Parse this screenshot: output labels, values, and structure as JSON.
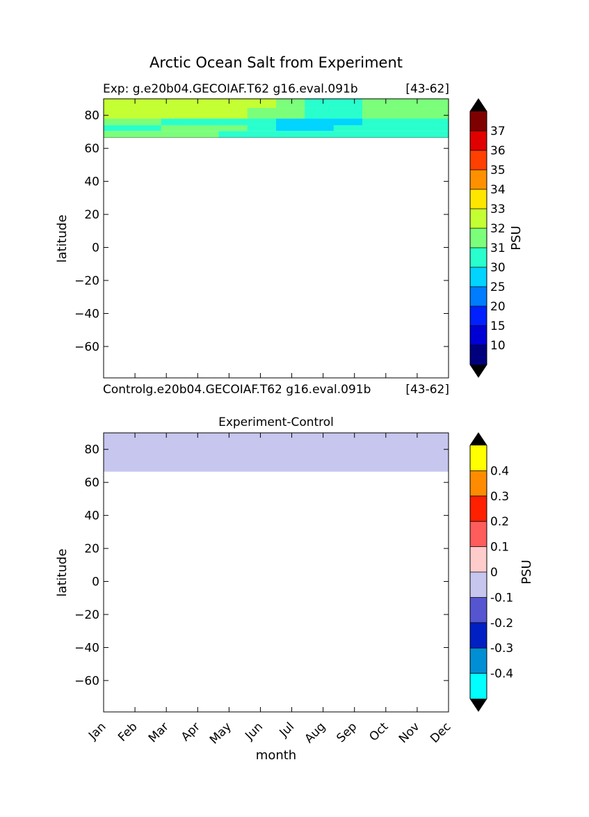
{
  "figure": {
    "suptitle": "Arctic Ocean Salt from Experiment"
  },
  "chart_data": [
    {
      "type": "heatmap",
      "title_left": "Exp:    g.e20b04.GECOIAF.T62 g16.eval.091b",
      "title_right": "[43-62]",
      "xlabel": "",
      "ylabel": "latitude",
      "ylim": [
        -79,
        90
      ],
      "yticks": [
        -60,
        -40,
        -20,
        0,
        20,
        40,
        60,
        80
      ],
      "xcategories": [
        "Jan",
        "Feb",
        "Mar",
        "Apr",
        "May",
        "Jun",
        "Jul",
        "Aug",
        "Sep",
        "Oct",
        "Nov",
        "Dec"
      ],
      "data_lat_range": [
        66.5,
        90
      ],
      "lat_bands": [
        {
          "lat_top": 90,
          "lat_bot": 84.5,
          "months": [
            32,
            32,
            32,
            32,
            32,
            32,
            31,
            30,
            30,
            31,
            31,
            31
          ]
        },
        {
          "lat_top": 84.5,
          "lat_bot": 78,
          "months": [
            32,
            32,
            32,
            32,
            32,
            31,
            31,
            30,
            30,
            31,
            31,
            31
          ]
        },
        {
          "lat_top": 78,
          "lat_bot": 74,
          "months": [
            31,
            31,
            30,
            30,
            30,
            30,
            25,
            25,
            25,
            30,
            30,
            30
          ]
        },
        {
          "lat_top": 74,
          "lat_bot": 70.5,
          "months": [
            30,
            30,
            31,
            31,
            31,
            30,
            25,
            25,
            30,
            30,
            30,
            30
          ]
        },
        {
          "lat_top": 70.5,
          "lat_bot": 66.5,
          "months": [
            31,
            31,
            31,
            31,
            30,
            30,
            30,
            30,
            30,
            30,
            30,
            30
          ]
        }
      ],
      "colorbar": {
        "label": "PSU",
        "levels": [
          10,
          15,
          20,
          25,
          30,
          31,
          32,
          33,
          34,
          35,
          36,
          37
        ],
        "colors": [
          "#00007f",
          "#0000d5",
          "#0020ff",
          "#007cff",
          "#00d4ff",
          "#29ffcd",
          "#7bff7b",
          "#c4ff33",
          "#ffe600",
          "#ff9100",
          "#ff4000",
          "#e00000",
          "#7f0000"
        ],
        "extend_low_color": "#000000",
        "extend_high_color": "#000000"
      }
    },
    {
      "type": "heatmap",
      "title_left": "Controlg.e20b04.GECOIAF.T62 g16.eval.091b",
      "title_right": "[43-62]",
      "title": "Experiment-Control",
      "xlabel": "month",
      "ylabel": "latitude",
      "ylim": [
        -79,
        90
      ],
      "yticks": [
        -60,
        -40,
        -20,
        0,
        20,
        40,
        60,
        80
      ],
      "xcategories": [
        "Jan",
        "Feb",
        "Mar",
        "Apr",
        "May",
        "Jun",
        "Jul",
        "Aug",
        "Sep",
        "Oct",
        "Nov",
        "Dec"
      ],
      "data_lat_range": [
        66.5,
        90
      ],
      "uniform_value": -0.05,
      "uniform_color": "#c6c6ee",
      "colorbar": {
        "label": "PSU",
        "levels": [
          -0.4,
          -0.3,
          -0.2,
          -0.1,
          0,
          0.1,
          0.2,
          0.3,
          0.4
        ],
        "colors": [
          "#00ffff",
          "#008fd5",
          "#0020c4",
          "#5555d0",
          "#c6c6ee",
          "#ffcccc",
          "#ff5c5c",
          "#ff2000",
          "#ff8c00",
          "#ffff00"
        ],
        "extend_low_color": "#000000",
        "extend_high_color": "#000000"
      }
    }
  ]
}
